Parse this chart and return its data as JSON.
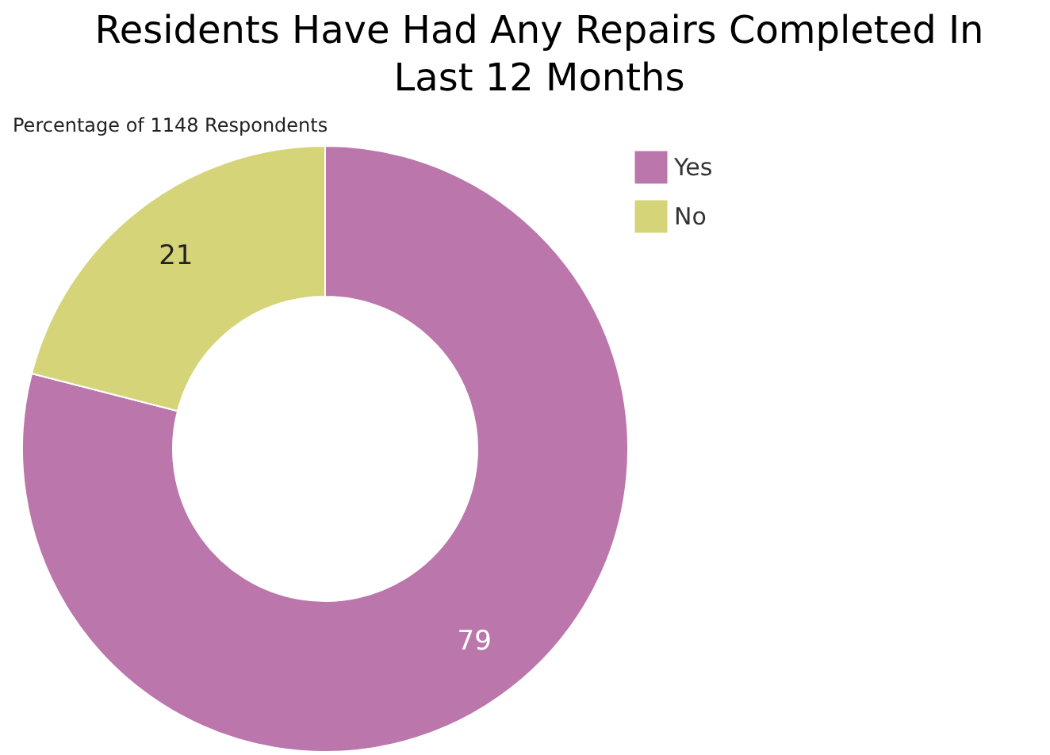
{
  "chart_data": {
    "type": "donut",
    "title": "Residents Have Had Any Repairs Completed In Last 12 Months",
    "subtitle": "Percentage of 1148 Respondents",
    "categories": [
      "Yes",
      "No"
    ],
    "values": [
      79,
      21
    ],
    "colors": [
      "#bb76ac",
      "#d6d479"
    ],
    "data_labels": true,
    "legend": "top right"
  }
}
